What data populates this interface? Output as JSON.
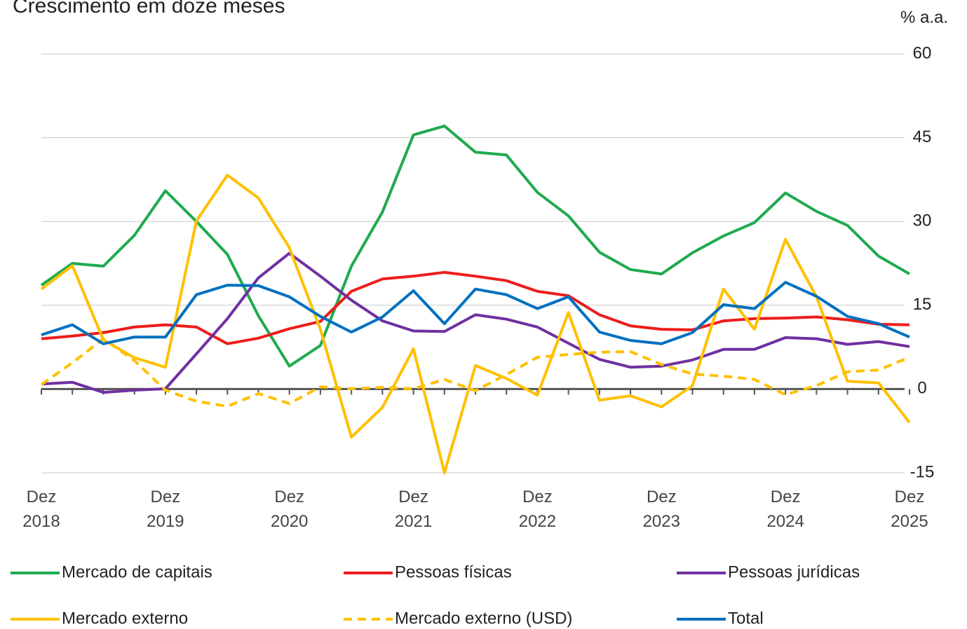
{
  "chart_data": {
    "type": "line",
    "title": "Crescimento em doze meses",
    "unit_label": "% a.a.",
    "categories": [
      "Dez 2018",
      null,
      null,
      null,
      "Dez 2019",
      null,
      null,
      null,
      "Dez 2020",
      null,
      null,
      null,
      "Dez 2021",
      null,
      null,
      null,
      "Dez 2022",
      null,
      null,
      null,
      "Dez 2023",
      null,
      null,
      null,
      "Dez 2024",
      null,
      null,
      null,
      "Dez 2025"
    ],
    "ylim": [
      -15,
      60
    ],
    "yticks": [
      -15,
      0,
      15,
      30,
      45,
      60
    ],
    "grid": true,
    "series": [
      {
        "name": "Mercado de capitais",
        "color": "#1faa4f",
        "dashed": false,
        "values": [
          18.6,
          22.5,
          22,
          27.5,
          35.5,
          30,
          24.1,
          13.1,
          4.1,
          7.8,
          22,
          31.7,
          45.5,
          47.1,
          42.4,
          41.9,
          35.2,
          31,
          24.5,
          21.4,
          20.6,
          24.4,
          27.4,
          29.8,
          35.1,
          31.8,
          29.3,
          23.8,
          20.6
        ]
      },
      {
        "name": "Pessoas físicas",
        "color": "#ee1c1c",
        "dashed": false,
        "values": [
          9,
          9.5,
          10.1,
          11.1,
          11.5,
          11.1,
          8.1,
          9.1,
          10.8,
          12.1,
          17.5,
          19.7,
          20.2,
          20.9,
          20.2,
          19.4,
          17.5,
          16.7,
          13.3,
          11.3,
          10.7,
          10.6,
          12.2,
          12.6,
          12.7,
          12.9,
          12.4,
          11.6,
          11.5
        ]
      },
      {
        "name": "Pessoas jurídicas",
        "color": "#7030a0",
        "dashed": false,
        "values": [
          0.9,
          1.2,
          -0.6,
          -0.2,
          0.05,
          6.3,
          12.6,
          19.9,
          24.3,
          20.2,
          15.9,
          12.2,
          10.4,
          10.3,
          13.3,
          12.5,
          11.1,
          8.2,
          5.3,
          3.9,
          4.1,
          5.2,
          7.1,
          7.1,
          9.2,
          9,
          8,
          8.5,
          7.6
        ]
      },
      {
        "name": "Mercado externo",
        "color": "#ffc000",
        "dashed": false,
        "values": [
          17.9,
          22.1,
          8.8,
          5.6,
          3.9,
          30.1,
          38.3,
          34.2,
          25.3,
          10.7,
          -8.6,
          -3.3,
          7.2,
          -15,
          4.2,
          1.9,
          -1.1,
          13.7,
          -2,
          -1.2,
          -3.2,
          0.6,
          17.9,
          10.7,
          26.8,
          16.5,
          1.4,
          1.1,
          -6
        ]
      },
      {
        "name": "Mercado externo (USD)",
        "color": "#ffc000",
        "dashed": true,
        "values": [
          0.8,
          4.7,
          9,
          5.1,
          -0.2,
          -2.2,
          -3.1,
          -0.8,
          -2.6,
          0.4,
          0.05,
          0.3,
          0.05,
          1.7,
          -0.3,
          2.6,
          5.7,
          6.2,
          6.6,
          6.7,
          4.4,
          2.7,
          2.3,
          1.7,
          -1,
          0.6,
          3.1,
          3.4,
          5.7
        ]
      },
      {
        "name": "Total",
        "color": "#0070c0",
        "dashed": false,
        "values": [
          9.7,
          11.5,
          8.1,
          9.3,
          9.3,
          16.9,
          18.6,
          18.5,
          16.5,
          13,
          10.2,
          12.9,
          17.6,
          11.7,
          17.9,
          16.9,
          14.4,
          16.5,
          10.2,
          8.7,
          8.1,
          10.1,
          15.1,
          14.4,
          19.1,
          16.6,
          13,
          11.7,
          9.3
        ]
      }
    ]
  }
}
